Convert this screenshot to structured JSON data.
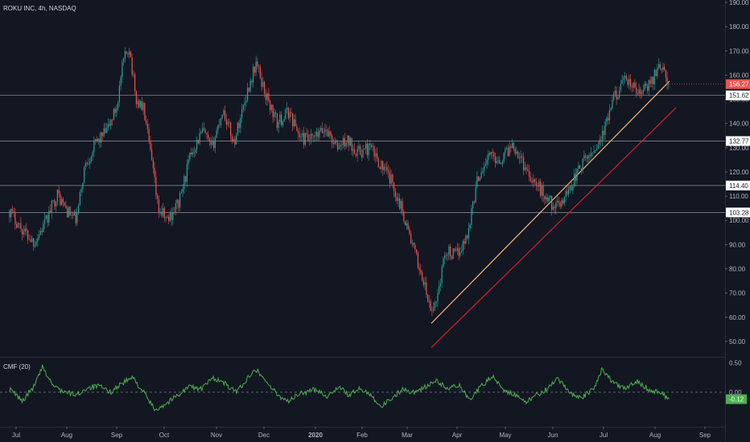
{
  "header": {
    "title": "ROKU INC, 4h, NASDAQ"
  },
  "colors": {
    "background": "#131722",
    "up": "#26a69a",
    "down": "#ef5350",
    "grid_line": "#b2b5be",
    "support_orange": "#f5b87a",
    "support_red": "#d5202f",
    "cmf_line": "#4caf50",
    "last_price_badge": "#ef5350",
    "cmf_badge": "#4caf50"
  },
  "chart_data": [
    {
      "type": "candlestick",
      "title": "ROKU INC, 4h, NASDAQ",
      "ylim": [
        45,
        190
      ],
      "y_ticks": [
        "190.00",
        "180.00",
        "170.00",
        "160.00",
        "150.00",
        "140.00",
        "130.00",
        "120.00",
        "110.00",
        "100.00",
        "90.00",
        "80.00",
        "70.00",
        "60.00",
        "50.00"
      ],
      "x_ticks": [
        "Jul",
        "Aug",
        "Sep",
        "Oct",
        "Nov",
        "Dec",
        "2020",
        "Feb",
        "Mar",
        "Apr",
        "May",
        "Jun",
        "Jul",
        "Aug",
        "Sep"
      ],
      "horizontal_levels": [
        {
          "value": 151.62,
          "label": "151.62"
        },
        {
          "value": 132.77,
          "label": "132.77"
        },
        {
          "value": 114.4,
          "label": "114.40"
        },
        {
          "value": 103.28,
          "label": "103.28"
        }
      ],
      "last_price": {
        "value": 156.27,
        "label": "156.27"
      },
      "trendlines": [
        {
          "name": "orange",
          "points": [
            [
              "2020-03-16",
              57.5
            ],
            [
              "2020-08-10",
              157.5
            ]
          ]
        },
        {
          "name": "red",
          "points": [
            [
              "2020-03-16",
              47.5
            ],
            [
              "2020-08-14",
              146.5
            ]
          ]
        }
      ],
      "price_path": [
        [
          "2019-06-27",
          104
        ],
        [
          "2019-07-05",
          96
        ],
        [
          "2019-07-12",
          91
        ],
        [
          "2019-07-19",
          99
        ],
        [
          "2019-07-26",
          111
        ],
        [
          "2019-08-01",
          104
        ],
        [
          "2019-08-07",
          100
        ],
        [
          "2019-08-12",
          122
        ],
        [
          "2019-08-19",
          132
        ],
        [
          "2019-08-26",
          137
        ],
        [
          "2019-09-01",
          147
        ],
        [
          "2019-09-05",
          165
        ],
        [
          "2019-09-09",
          172
        ],
        [
          "2019-09-13",
          150
        ],
        [
          "2019-09-18",
          146
        ],
        [
          "2019-09-24",
          120
        ],
        [
          "2019-09-27",
          105
        ],
        [
          "2019-10-03",
          100
        ],
        [
          "2019-10-10",
          108
        ],
        [
          "2019-10-17",
          128
        ],
        [
          "2019-10-24",
          137
        ],
        [
          "2019-10-29",
          129
        ],
        [
          "2019-11-05",
          146
        ],
        [
          "2019-11-12",
          132
        ],
        [
          "2019-11-19",
          150
        ],
        [
          "2019-11-26",
          165
        ],
        [
          "2019-12-02",
          152
        ],
        [
          "2019-12-09",
          140
        ],
        [
          "2019-12-16",
          145
        ],
        [
          "2019-12-23",
          134
        ],
        [
          "2019-12-30",
          133
        ],
        [
          "2020-01-08",
          138
        ],
        [
          "2020-01-15",
          130
        ],
        [
          "2020-01-22",
          133
        ],
        [
          "2020-01-30",
          128
        ],
        [
          "2020-02-06",
          130
        ],
        [
          "2020-02-13",
          123
        ],
        [
          "2020-02-20",
          116
        ],
        [
          "2020-02-27",
          104
        ],
        [
          "2020-03-05",
          88
        ],
        [
          "2020-03-11",
          75
        ],
        [
          "2020-03-16",
          61
        ],
        [
          "2020-03-20",
          70
        ],
        [
          "2020-03-25",
          88
        ],
        [
          "2020-03-31",
          85
        ],
        [
          "2020-04-07",
          93
        ],
        [
          "2020-04-14",
          118
        ],
        [
          "2020-04-21",
          127
        ],
        [
          "2020-04-28",
          125
        ],
        [
          "2020-05-06",
          132
        ],
        [
          "2020-05-13",
          123
        ],
        [
          "2020-05-20",
          116
        ],
        [
          "2020-05-27",
          110
        ],
        [
          "2020-06-03",
          105
        ],
        [
          "2020-06-10",
          112
        ],
        [
          "2020-06-17",
          122
        ],
        [
          "2020-06-24",
          128
        ],
        [
          "2020-07-01",
          136
        ],
        [
          "2020-07-08",
          152
        ],
        [
          "2020-07-15",
          158
        ],
        [
          "2020-07-22",
          152
        ],
        [
          "2020-07-29",
          156
        ],
        [
          "2020-08-04",
          165
        ],
        [
          "2020-08-07",
          160
        ],
        [
          "2020-08-10",
          156.27
        ]
      ]
    },
    {
      "type": "line",
      "title": "CMF (20)",
      "ylim": [
        -0.55,
        0.55
      ],
      "y_ticks": [
        "0.50",
        "0.00"
      ],
      "zero_line": true,
      "last_value": {
        "value": -0.12,
        "label": "-0.12"
      },
      "series": [
        {
          "values": [
            [
              "2019-06-27",
              0.05
            ],
            [
              "2019-07-05",
              -0.15
            ],
            [
              "2019-07-12",
              0.1
            ],
            [
              "2019-07-17",
              0.42
            ],
            [
              "2019-07-24",
              0.1
            ],
            [
              "2019-07-31",
              0.0
            ],
            [
              "2019-08-07",
              -0.05
            ],
            [
              "2019-08-14",
              0.08
            ],
            [
              "2019-08-21",
              0.1
            ],
            [
              "2019-08-28",
              0.0
            ],
            [
              "2019-09-04",
              0.15
            ],
            [
              "2019-09-11",
              0.25
            ],
            [
              "2019-09-18",
              0.0
            ],
            [
              "2019-09-25",
              -0.3
            ],
            [
              "2019-10-02",
              -0.2
            ],
            [
              "2019-10-09",
              -0.05
            ],
            [
              "2019-10-16",
              0.1
            ],
            [
              "2019-10-23",
              0.05
            ],
            [
              "2019-10-30",
              0.25
            ],
            [
              "2019-11-06",
              0.15
            ],
            [
              "2019-11-13",
              0.0
            ],
            [
              "2019-11-20",
              0.2
            ],
            [
              "2019-11-25",
              0.42
            ],
            [
              "2019-12-02",
              0.2
            ],
            [
              "2019-12-09",
              -0.05
            ],
            [
              "2019-12-16",
              -0.15
            ],
            [
              "2019-12-23",
              -0.02
            ],
            [
              "2020-01-02",
              0.05
            ],
            [
              "2020-01-09",
              -0.08
            ],
            [
              "2020-01-16",
              0.1
            ],
            [
              "2020-01-23",
              -0.05
            ],
            [
              "2020-01-30",
              0.05
            ],
            [
              "2020-02-06",
              -0.02
            ],
            [
              "2020-02-13",
              -0.25
            ],
            [
              "2020-02-20",
              -0.1
            ],
            [
              "2020-02-27",
              0.05
            ],
            [
              "2020-03-05",
              0.0
            ],
            [
              "2020-03-12",
              0.08
            ],
            [
              "2020-03-19",
              0.2
            ],
            [
              "2020-03-26",
              0.05
            ],
            [
              "2020-04-02",
              0.12
            ],
            [
              "2020-04-09",
              -0.12
            ],
            [
              "2020-04-16",
              0.1
            ],
            [
              "2020-04-23",
              0.28
            ],
            [
              "2020-04-30",
              0.05
            ],
            [
              "2020-05-07",
              -0.05
            ],
            [
              "2020-05-14",
              -0.18
            ],
            [
              "2020-05-21",
              -0.05
            ],
            [
              "2020-05-28",
              0.05
            ],
            [
              "2020-06-04",
              0.22
            ],
            [
              "2020-06-11",
              0.0
            ],
            [
              "2020-06-18",
              -0.1
            ],
            [
              "2020-06-25",
              0.05
            ],
            [
              "2020-06-30",
              0.4
            ],
            [
              "2020-07-07",
              0.15
            ],
            [
              "2020-07-14",
              0.05
            ],
            [
              "2020-07-21",
              0.2
            ],
            [
              "2020-07-28",
              0.05
            ],
            [
              "2020-08-04",
              0.0
            ],
            [
              "2020-08-10",
              -0.12
            ]
          ]
        }
      ]
    }
  ]
}
